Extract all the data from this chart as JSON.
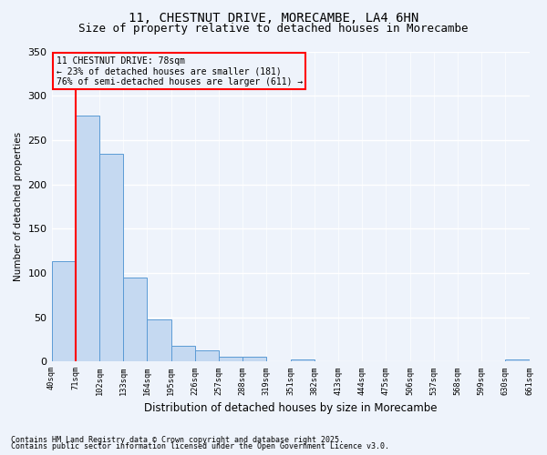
{
  "title1": "11, CHESTNUT DRIVE, MORECAMBE, LA4 6HN",
  "title2": "Size of property relative to detached houses in Morecambe",
  "xlabel": "Distribution of detached houses by size in Morecambe",
  "ylabel": "Number of detached properties",
  "bar_values": [
    113,
    278,
    234,
    95,
    48,
    18,
    13,
    5,
    5,
    0,
    2,
    0,
    0,
    0,
    0,
    0,
    0,
    0,
    0,
    2
  ],
  "x_labels": [
    "40sqm",
    "71sqm",
    "102sqm",
    "133sqm",
    "164sqm",
    "195sqm",
    "226sqm",
    "257sqm",
    "288sqm",
    "319sqm",
    "351sqm",
    "382sqm",
    "413sqm",
    "444sqm",
    "475sqm",
    "506sqm",
    "537sqm",
    "568sqm",
    "599sqm",
    "630sqm",
    "661sqm"
  ],
  "bar_color": "#c5d9f1",
  "bar_edge_color": "#5b9bd5",
  "red_line_x": 0.5,
  "annotation_title": "11 CHESTNUT DRIVE: 78sqm",
  "annotation_line1": "← 23% of detached houses are smaller (181)",
  "annotation_line2": "76% of semi-detached houses are larger (611) →",
  "footnote1": "Contains HM Land Registry data © Crown copyright and database right 2025.",
  "footnote2": "Contains public sector information licensed under the Open Government Licence v3.0.",
  "ylim": [
    0,
    350
  ],
  "yticks": [
    0,
    50,
    100,
    150,
    200,
    250,
    300,
    350
  ],
  "bg_color": "#eef3fb",
  "grid_color": "#ffffff",
  "title1_fontsize": 10,
  "title2_fontsize": 9
}
